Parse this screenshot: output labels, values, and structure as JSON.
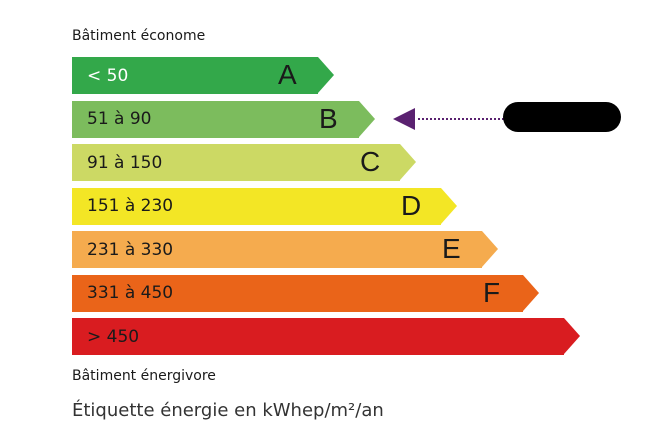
{
  "header": {
    "top_label": "Bâtiment économe",
    "bottom_label": "Bâtiment énergivore"
  },
  "footer": {
    "unit_label": "Étiquette énergie en kWhep/m²/an"
  },
  "classes": [
    {
      "letter": "A",
      "range": "< 50",
      "color": "#33a84a",
      "text_color": "#ffffff"
    },
    {
      "letter": "B",
      "range": "51 à 90",
      "color": "#7cbc5d",
      "text_color": "#1a1a1a"
    },
    {
      "letter": "C",
      "range": "91 à 150",
      "color": "#ccd964",
      "text_color": "#1a1a1a"
    },
    {
      "letter": "D",
      "range": "151 à 230",
      "color": "#f3e625",
      "text_color": "#1a1a1a"
    },
    {
      "letter": "E",
      "range": "231 à 330",
      "color": "#f5ab4e",
      "text_color": "#1a1a1a"
    },
    {
      "letter": "F",
      "range": "331 à 450",
      "color": "#ea6419",
      "text_color": "#1a1a1a"
    },
    {
      "letter": "",
      "range": "> 450",
      "color": "#d91c20",
      "text_color": "#1a1a1a"
    }
  ],
  "indicator": {
    "class": "B",
    "color": "#5a2170",
    "value_redacted": true
  }
}
